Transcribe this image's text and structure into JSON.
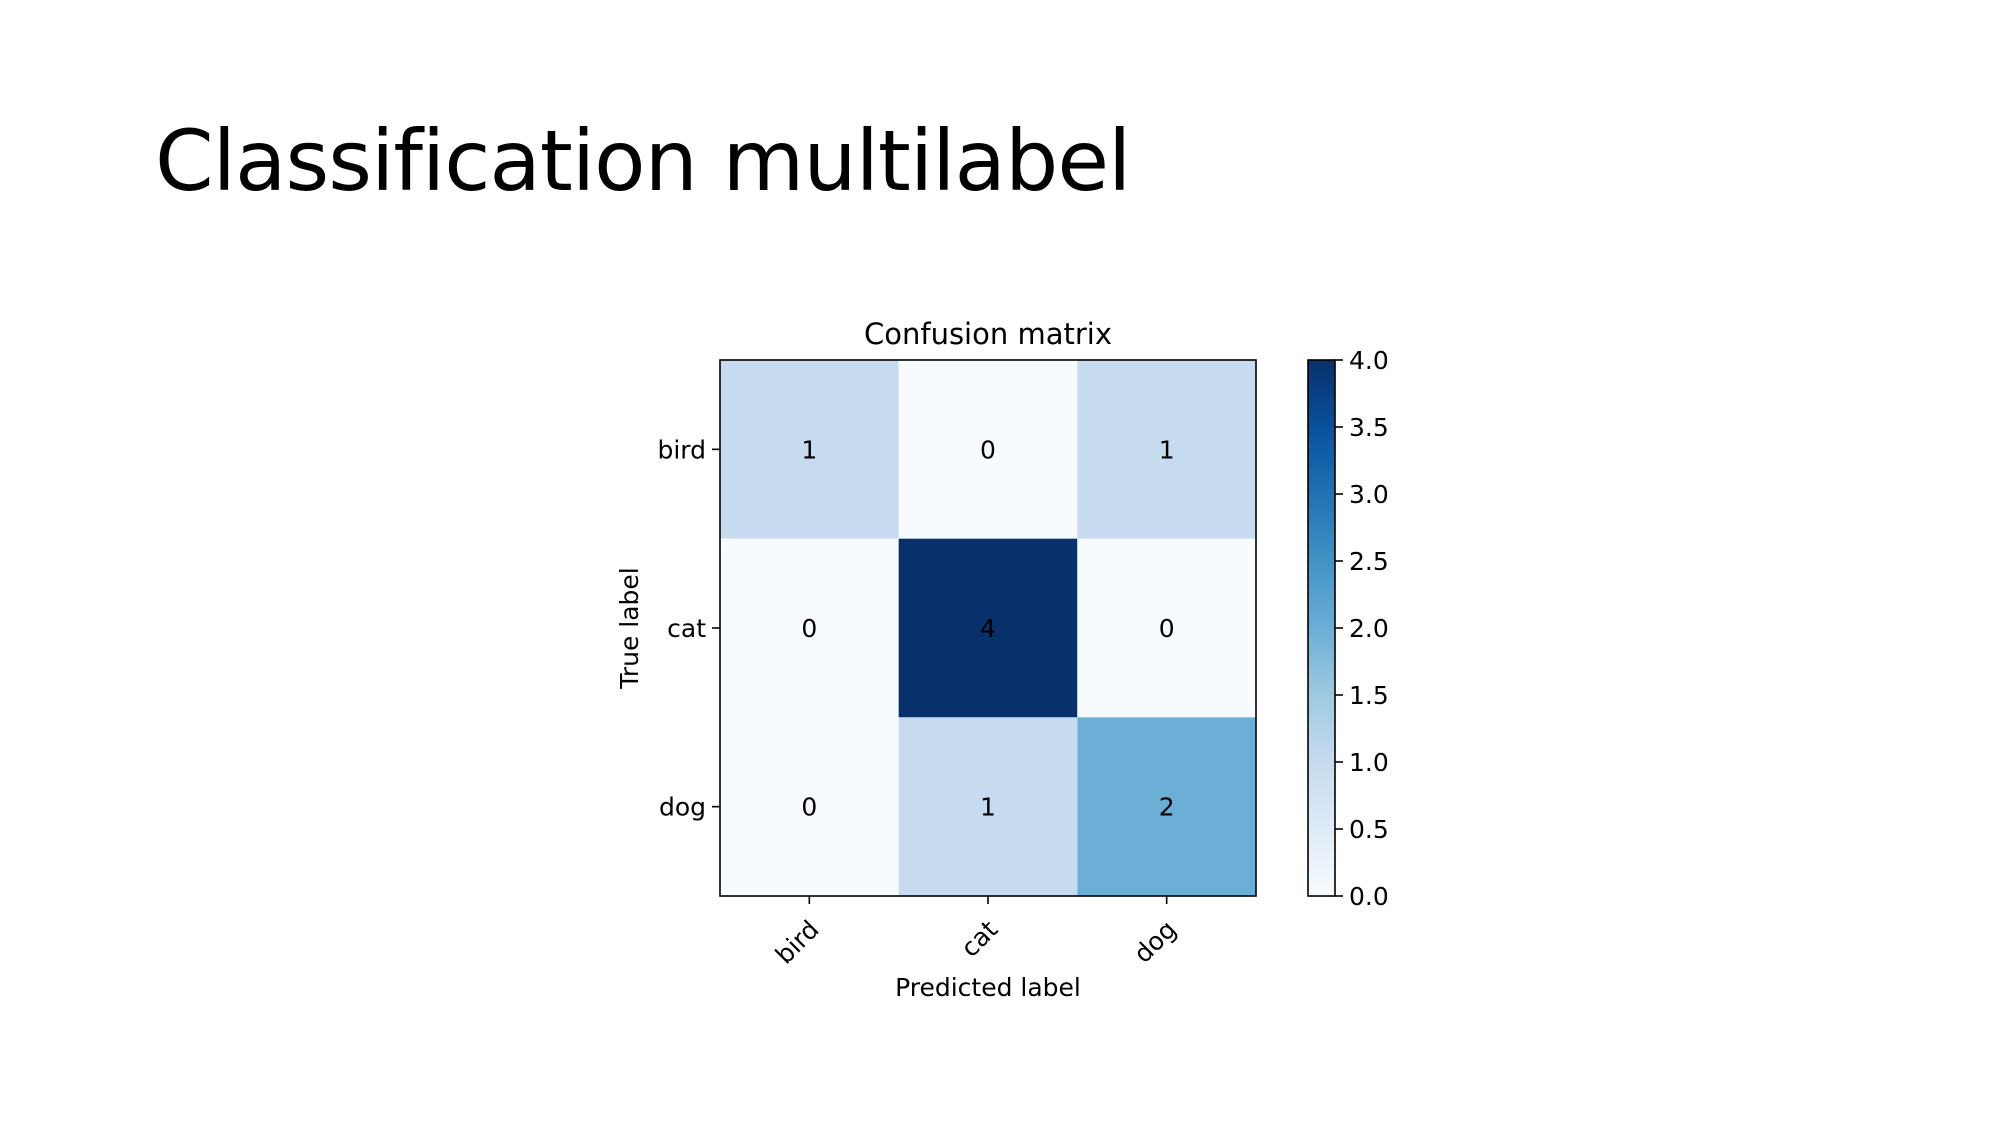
{
  "slide": {
    "title": "Classification multilabel"
  },
  "chart_data": {
    "type": "heatmap",
    "title": "Confusion matrix",
    "xlabel": "Predicted label",
    "ylabel": "True label",
    "x_categories": [
      "bird",
      "cat",
      "dog"
    ],
    "y_categories": [
      "bird",
      "cat",
      "dog"
    ],
    "values": [
      [
        1,
        0,
        1
      ],
      [
        0,
        4,
        0
      ],
      [
        0,
        1,
        2
      ]
    ],
    "colormap": "Blues",
    "color_range": [
      0.0,
      4.0
    ],
    "colorbar_ticks": [
      "0.0",
      "0.5",
      "1.0",
      "1.5",
      "2.0",
      "2.5",
      "3.0",
      "3.5",
      "4.0"
    ]
  }
}
